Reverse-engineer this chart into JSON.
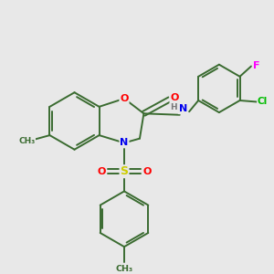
{
  "background_color": "#e8e8e8",
  "bond_color": "#3a6b30",
  "atom_colors": {
    "O": "#ff0000",
    "N": "#0000ee",
    "S": "#cccc00",
    "Cl": "#00bb00",
    "F": "#ff00ff",
    "H": "#777777",
    "C": "#3a6b30"
  },
  "figsize": [
    3.0,
    3.0
  ],
  "dpi": 100
}
